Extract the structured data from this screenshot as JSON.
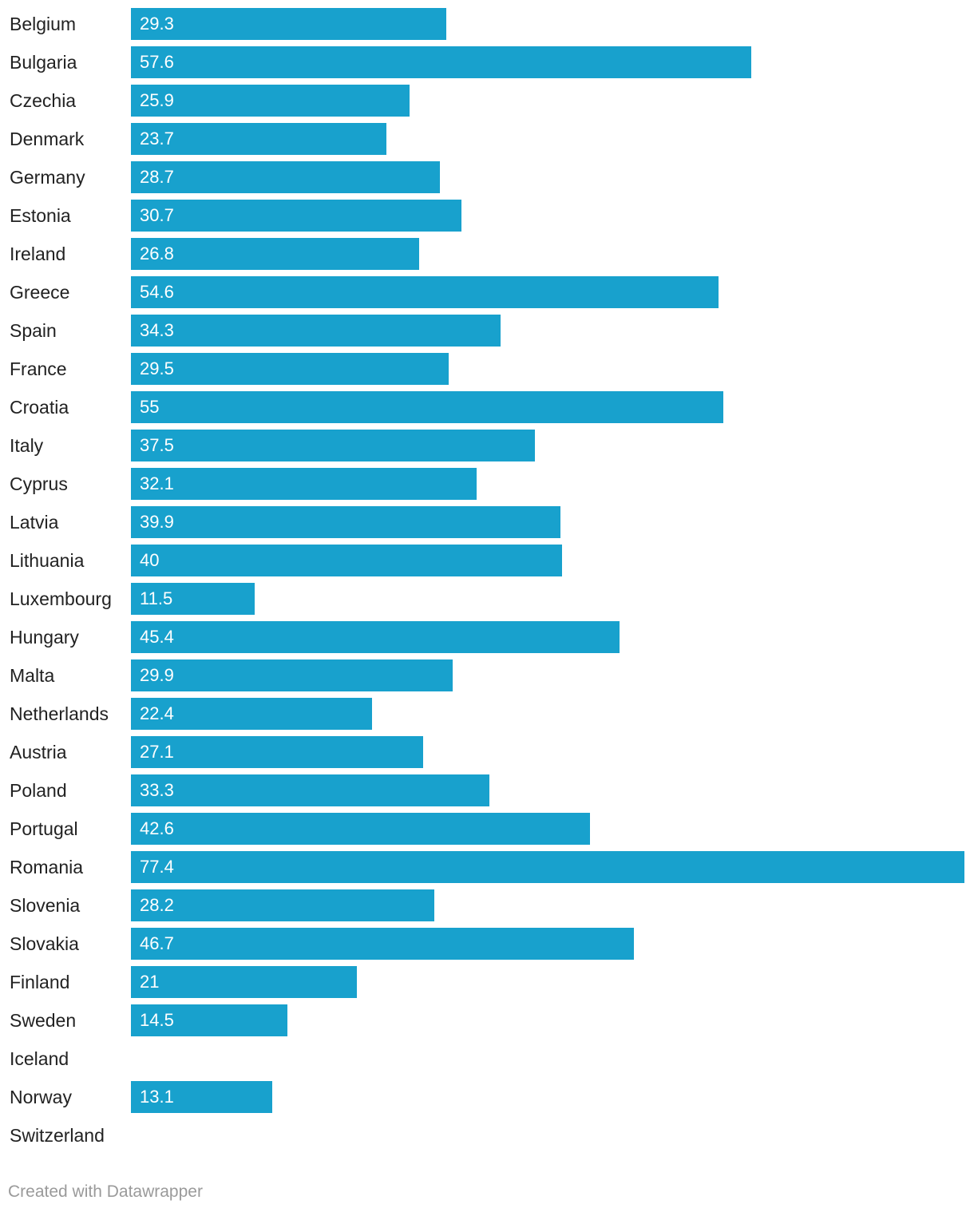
{
  "chart_data": {
    "type": "bar",
    "orientation": "horizontal",
    "categories": [
      "Belgium",
      "Bulgaria",
      "Czechia",
      "Denmark",
      "Germany",
      "Estonia",
      "Ireland",
      "Greece",
      "Spain",
      "France",
      "Croatia",
      "Italy",
      "Cyprus",
      "Latvia",
      "Lithuania",
      "Luxembourg",
      "Hungary",
      "Malta",
      "Netherlands",
      "Austria",
      "Poland",
      "Portugal",
      "Romania",
      "Slovenia",
      "Slovakia",
      "Finland",
      "Sweden",
      "Iceland",
      "Norway",
      "Switzerland"
    ],
    "values": [
      29.3,
      57.6,
      25.9,
      23.7,
      28.7,
      30.7,
      26.8,
      54.6,
      34.3,
      29.5,
      55,
      37.5,
      32.1,
      39.9,
      40,
      11.5,
      45.4,
      29.9,
      22.4,
      27.1,
      33.3,
      42.6,
      77.4,
      28.2,
      46.7,
      21,
      14.5,
      null,
      13.1,
      null
    ],
    "value_labels": [
      "29.3",
      "57.6",
      "25.9",
      "23.7",
      "28.7",
      "30.7",
      "26.8",
      "54.6",
      "34.3",
      "29.5",
      "55",
      "37.5",
      "32.1",
      "39.9",
      "40",
      "11.5",
      "45.4",
      "29.9",
      "22.4",
      "27.1",
      "33.3",
      "42.6",
      "77.4",
      "28.2",
      "46.7",
      "21",
      "14.5",
      "",
      "13.1",
      ""
    ],
    "xlim": [
      0,
      77.4
    ],
    "grid": false,
    "bar_color": "#18a1cd",
    "label_color": "#222222",
    "value_label_color": "#ffffff"
  },
  "footer": {
    "credit": "Created with Datawrapper"
  }
}
